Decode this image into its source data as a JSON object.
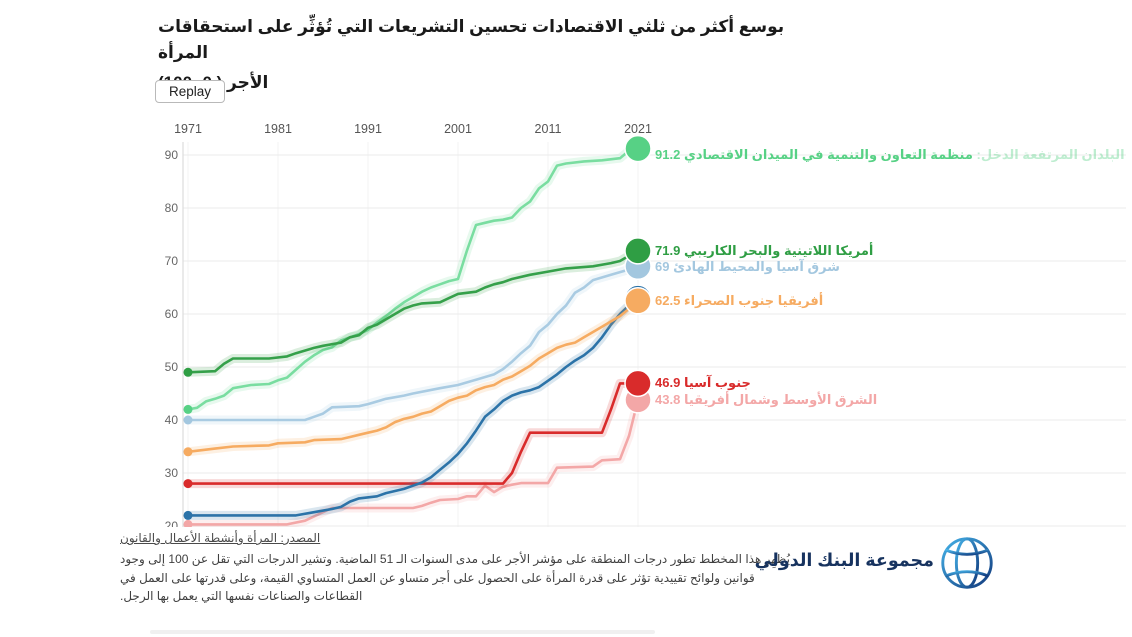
{
  "title": {
    "line1": "بوسع أكثر من ثلثي الاقتصادات تحسين التشريعات التي تُؤثِّر على استحقاقات المرأة",
    "line2": "الأجر ( 0- 100)"
  },
  "replay_button_label": "Replay",
  "footer": {
    "source_link": "المصدر: المرأة وأنشطة الأعمال والقانون",
    "description": "يُظهِر هذا المخطط تطور درجات المنطقة على مؤشر الأجر على مدى السنوات الـ 51 الماضية. وتشير الدرجات التي تقل عن 100 إلى وجود قوانين ولوائح تقييدية تؤثر على قدرة المرأة على الحصول على أجر متساو عن العمل المتساوي القيمة، وعلى قدرتها على العمل في القطاعات والصناعات نفسها التي يعمل بها الرجل."
  },
  "logo": {
    "text": "مجموعة البنك الدولي"
  },
  "chart_data": {
    "type": "line",
    "title": "بوسع أكثر من ثلثي الاقتصادات تحسين التشريعات التي تُؤثِّر على استحقاقات المرأة — الأجر (0-100)",
    "x_axis_position": "top",
    "x_ticks": [
      1971,
      1981,
      1991,
      2001,
      2011,
      2021
    ],
    "y_ticks": [
      90,
      80,
      70,
      60,
      50,
      40,
      30,
      20
    ],
    "xlim": [
      1971,
      2021
    ],
    "ylim": [
      20,
      93
    ],
    "grid": true,
    "legend_position": "right-of-line-ends",
    "series": [
      {
        "name": "منظمة التعاون والتنمية في الميدان الاقتصادي",
        "name_prefix_faded": "البلدان المرتفعة الدخل:",
        "value_label": "91.2",
        "end_value": 91.2,
        "color": "#79dda0",
        "dot_color": "#57d185",
        "label_visible": true,
        "points": [
          [
            1971,
            42
          ],
          [
            1972,
            42.3
          ],
          [
            1973,
            43.5
          ],
          [
            1974,
            44
          ],
          [
            1975,
            44.6
          ],
          [
            1976,
            46
          ],
          [
            1978,
            46.6
          ],
          [
            1980,
            46.8
          ],
          [
            1981,
            47.5
          ],
          [
            1982,
            48
          ],
          [
            1983,
            49.5
          ],
          [
            1984,
            51
          ],
          [
            1985,
            52.2
          ],
          [
            1986,
            53.2
          ],
          [
            1987,
            53.7
          ],
          [
            1988,
            55
          ],
          [
            1989,
            55.6
          ],
          [
            1990,
            56.2
          ],
          [
            1991,
            57
          ],
          [
            1992,
            58.4
          ],
          [
            1993,
            59.6
          ],
          [
            1994,
            61
          ],
          [
            1995,
            62.2
          ],
          [
            1996,
            63.2
          ],
          [
            1997,
            64.2
          ],
          [
            1998,
            65
          ],
          [
            1999,
            65.6
          ],
          [
            2000,
            66.2
          ],
          [
            2001,
            66.6
          ],
          [
            2002,
            72
          ],
          [
            2003,
            76.8
          ],
          [
            2004,
            77.2
          ],
          [
            2005,
            77.6
          ],
          [
            2006,
            77.8
          ],
          [
            2007,
            78.2
          ],
          [
            2008,
            80
          ],
          [
            2009,
            81.2
          ],
          [
            2010,
            83.7
          ],
          [
            2011,
            85
          ],
          [
            2012,
            88
          ],
          [
            2013,
            88.4
          ],
          [
            2015,
            88.8
          ],
          [
            2017,
            89
          ],
          [
            2019,
            89.4
          ],
          [
            2020,
            90.8
          ],
          [
            2021,
            91.2
          ]
        ]
      },
      {
        "name": "أمريكا اللاتينية والبحر الكاريبي",
        "value_label": "71.9",
        "end_value": 71.9,
        "color": "#35a04a",
        "dot_color": "#2f9e44",
        "label_visible": true,
        "points": [
          [
            1971,
            49
          ],
          [
            1974,
            49.2
          ],
          [
            1975,
            50.6
          ],
          [
            1976,
            51.6
          ],
          [
            1980,
            51.6
          ],
          [
            1982,
            52
          ],
          [
            1983,
            52.6
          ],
          [
            1985,
            53.6
          ],
          [
            1986,
            54
          ],
          [
            1988,
            54.6
          ],
          [
            1989,
            55.6
          ],
          [
            1990,
            56
          ],
          [
            1991,
            57.4
          ],
          [
            1992,
            58
          ],
          [
            1993,
            59
          ],
          [
            1994,
            60
          ],
          [
            1995,
            61
          ],
          [
            1996,
            61.6
          ],
          [
            1997,
            62
          ],
          [
            1999,
            62.2
          ],
          [
            2000,
            63
          ],
          [
            2001,
            63.8
          ],
          [
            2003,
            64.2
          ],
          [
            2004,
            65
          ],
          [
            2005,
            65.6
          ],
          [
            2006,
            66
          ],
          [
            2007,
            66.6
          ],
          [
            2009,
            67.4
          ],
          [
            2011,
            68
          ],
          [
            2013,
            68.6
          ],
          [
            2016,
            69
          ],
          [
            2018,
            69.6
          ],
          [
            2019,
            70
          ],
          [
            2020,
            71
          ],
          [
            2021,
            71.9
          ]
        ]
      },
      {
        "name": "شرق آسيا والمحيط الهادئ",
        "value_label": "69",
        "end_value": 69,
        "color": "#a9cbe2",
        "dot_color": "#a3c7df",
        "label_visible": true,
        "points": [
          [
            1971,
            40
          ],
          [
            1984,
            40
          ],
          [
            1985,
            40.6
          ],
          [
            1986,
            41.2
          ],
          [
            1987,
            42.4
          ],
          [
            1990,
            42.6
          ],
          [
            1991,
            43
          ],
          [
            1993,
            44
          ],
          [
            1995,
            44.6
          ],
          [
            1996,
            45
          ],
          [
            1999,
            46
          ],
          [
            2001,
            46.6
          ],
          [
            2003,
            47.6
          ],
          [
            2005,
            48.6
          ],
          [
            2006,
            49.6
          ],
          [
            2007,
            51
          ],
          [
            2008,
            52.6
          ],
          [
            2009,
            54
          ],
          [
            2010,
            56.6
          ],
          [
            2011,
            58
          ],
          [
            2012,
            60
          ],
          [
            2013,
            61.6
          ],
          [
            2014,
            64
          ],
          [
            2015,
            65
          ],
          [
            2016,
            66.4
          ],
          [
            2018,
            67.4
          ],
          [
            2020,
            68.4
          ],
          [
            2021,
            69
          ]
        ]
      },
      {
        "name": "أفريقيا جنوب الصحراء",
        "value_label": "62.5",
        "end_value": 62.5,
        "color": "#f6ab61",
        "dot_color": "#f6ab61",
        "label_visible": true,
        "points": [
          [
            1971,
            34
          ],
          [
            1974,
            34.6
          ],
          [
            1976,
            35
          ],
          [
            1980,
            35.2
          ],
          [
            1981,
            35.6
          ],
          [
            1984,
            35.8
          ],
          [
            1985,
            36.2
          ],
          [
            1988,
            36.4
          ],
          [
            1989,
            36.8
          ],
          [
            1990,
            37.2
          ],
          [
            1991,
            37.6
          ],
          [
            1992,
            38
          ],
          [
            1993,
            38.6
          ],
          [
            1994,
            39.6
          ],
          [
            1995,
            40.2
          ],
          [
            1996,
            40.6
          ],
          [
            1997,
            41.2
          ],
          [
            1998,
            41.6
          ],
          [
            1999,
            42.6
          ],
          [
            2000,
            43.6
          ],
          [
            2001,
            44.2
          ],
          [
            2002,
            44.6
          ],
          [
            2003,
            45.6
          ],
          [
            2004,
            46.2
          ],
          [
            2005,
            46.6
          ],
          [
            2006,
            47.6
          ],
          [
            2007,
            48.2
          ],
          [
            2008,
            49.2
          ],
          [
            2009,
            50.2
          ],
          [
            2010,
            51.6
          ],
          [
            2011,
            52.6
          ],
          [
            2012,
            53.6
          ],
          [
            2013,
            54.2
          ],
          [
            2014,
            54.6
          ],
          [
            2015,
            55.6
          ],
          [
            2016,
            56.6
          ],
          [
            2017,
            57.6
          ],
          [
            2018,
            58.6
          ],
          [
            2019,
            59.6
          ],
          [
            2020,
            61
          ],
          [
            2021,
            62.5
          ]
        ]
      },
      {
        "name": "",
        "value_label": "",
        "end_value": 63,
        "color": "#2c73a8",
        "dot_color": "#2c73a8",
        "label_visible": false,
        "points": [
          [
            1971,
            22
          ],
          [
            1983,
            22
          ],
          [
            1985,
            22.6
          ],
          [
            1987,
            23.2
          ],
          [
            1988,
            23.6
          ],
          [
            1989,
            24.6
          ],
          [
            1990,
            25.2
          ],
          [
            1992,
            25.6
          ],
          [
            1993,
            26.2
          ],
          [
            1995,
            27
          ],
          [
            1996,
            27.6
          ],
          [
            1997,
            28.2
          ],
          [
            1998,
            29.2
          ],
          [
            1999,
            30.6
          ],
          [
            2000,
            32
          ],
          [
            2001,
            33.6
          ],
          [
            2002,
            35.6
          ],
          [
            2003,
            38
          ],
          [
            2004,
            40.6
          ],
          [
            2005,
            42
          ],
          [
            2006,
            43.6
          ],
          [
            2007,
            44.6
          ],
          [
            2008,
            45.2
          ],
          [
            2009,
            45.6
          ],
          [
            2010,
            46.2
          ],
          [
            2012,
            48.6
          ],
          [
            2013,
            50
          ],
          [
            2014,
            51.2
          ],
          [
            2015,
            52.2
          ],
          [
            2016,
            53.6
          ],
          [
            2017,
            55.6
          ],
          [
            2018,
            58
          ],
          [
            2019,
            60
          ],
          [
            2020,
            61.6
          ],
          [
            2021,
            63
          ]
        ]
      },
      {
        "name": "جنوب آسيا",
        "value_label": "46.9",
        "end_value": 46.9,
        "color": "#d92b2b",
        "dot_color": "#d92b2b",
        "label_visible": true,
        "points": [
          [
            1971,
            28
          ],
          [
            2006,
            28
          ],
          [
            2007,
            30
          ],
          [
            2008,
            34
          ],
          [
            2009,
            37.6
          ],
          [
            2017,
            37.6
          ],
          [
            2018,
            42
          ],
          [
            2019,
            46.9
          ],
          [
            2021,
            46.9
          ]
        ]
      },
      {
        "name": "الشرق الأوسط وشمال أفريقيا",
        "value_label": "43.8",
        "end_value": 43.8,
        "color": "#f3a7a7",
        "dot_color": "#f3a7a7",
        "label_visible": true,
        "points": [
          [
            1971,
            20.3
          ],
          [
            1982,
            20.3
          ],
          [
            1984,
            21
          ],
          [
            1986,
            22.6
          ],
          [
            1987,
            23.4
          ],
          [
            1996,
            23.4
          ],
          [
            1997,
            23.8
          ],
          [
            1998,
            24.4
          ],
          [
            1999,
            24.9
          ],
          [
            2001,
            25.1
          ],
          [
            2002,
            25.6
          ],
          [
            2003,
            25.6
          ],
          [
            2004,
            27.6
          ],
          [
            2005,
            26.4
          ],
          [
            2006,
            27.4
          ],
          [
            2007,
            27.8
          ],
          [
            2008,
            28.1
          ],
          [
            2011,
            28.1
          ],
          [
            2012,
            31
          ],
          [
            2016,
            31.2
          ],
          [
            2017,
            32.4
          ],
          [
            2019,
            32.6
          ],
          [
            2020,
            37
          ],
          [
            2021,
            43.8
          ]
        ]
      }
    ]
  }
}
